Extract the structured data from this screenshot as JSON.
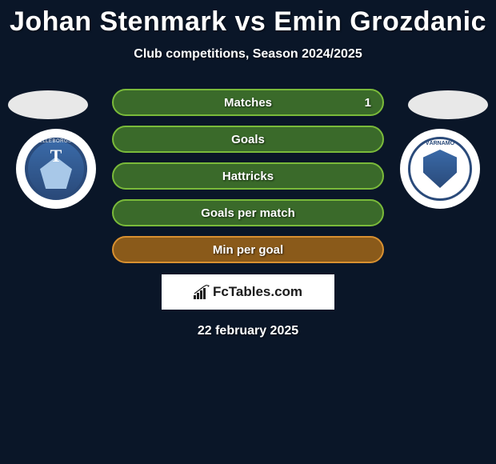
{
  "title": "Johan Stenmark vs Emin Grozdanic",
  "subtitle": "Club competitions, Season 2024/2025",
  "date": "22 february 2025",
  "brand": "FcTables.com",
  "badges": {
    "left": {
      "letter": "T",
      "arc": "TRELLEBORGS FF"
    },
    "right": {
      "arc": "VÄRNAMO"
    }
  },
  "colors": {
    "background": "#0a1628",
    "row_green_fill": "#3a6a2a",
    "row_green_border": "#7aba3a",
    "row_orange_fill": "#8a5a1a",
    "row_orange_border": "#d89030",
    "text": "#ffffff"
  },
  "stats": [
    {
      "label": "Matches",
      "value_right": "1",
      "style": "green"
    },
    {
      "label": "Goals",
      "style": "green"
    },
    {
      "label": "Hattricks",
      "style": "green"
    },
    {
      "label": "Goals per match",
      "style": "green"
    },
    {
      "label": "Min per goal",
      "style": "orange"
    }
  ]
}
